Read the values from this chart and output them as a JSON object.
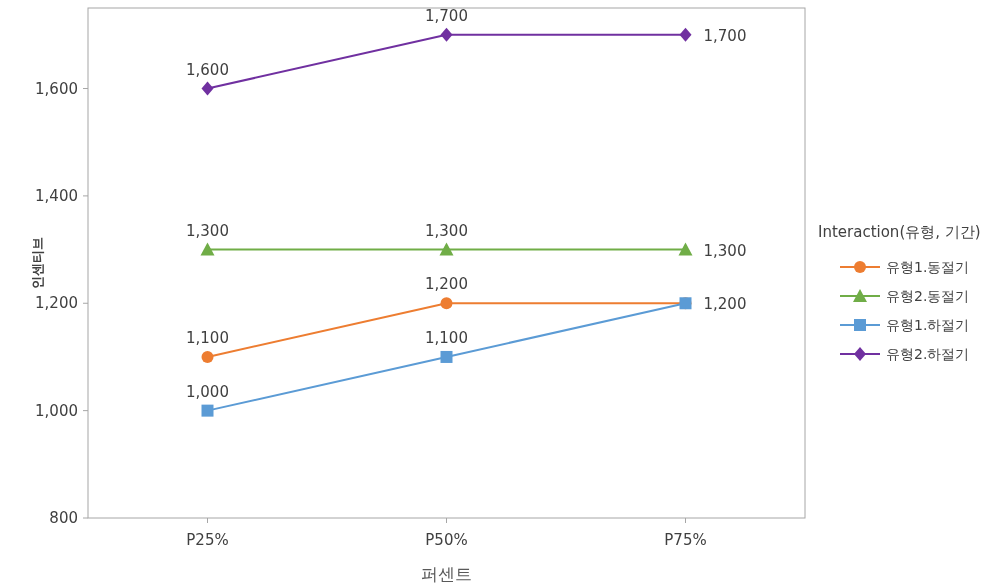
{
  "chart_data": {
    "type": "line",
    "xlabel": "퍼센트",
    "ylabel": "인센티브",
    "legend_title": "Interaction(유형, 기간)",
    "legend": "right",
    "grid": false,
    "line_style": "solid",
    "categories": [
      "P25%",
      "P50%",
      "P75%"
    ],
    "ylim": [
      800,
      1750
    ],
    "yticks": [
      {
        "value": 800,
        "label": "800"
      },
      {
        "value": 1000,
        "label": "1,000"
      },
      {
        "value": 1200,
        "label": "1,200"
      },
      {
        "value": 1400,
        "label": "1,400"
      },
      {
        "value": 1600,
        "label": "1,600"
      }
    ],
    "series": [
      {
        "name": "유형1.동절기",
        "color": "#ed7d31",
        "marker": "circle",
        "values": [
          1100,
          1200,
          1200
        ],
        "value_labels": [
          "1,100",
          "1,200",
          null
        ]
      },
      {
        "name": "유형2.동절기",
        "color": "#70ad47",
        "marker": "triangle",
        "values": [
          1300,
          1300,
          1300
        ],
        "value_labels": [
          "1,300",
          "1,300",
          "1,300"
        ]
      },
      {
        "name": "유형1.하절기",
        "color": "#5b9bd5",
        "marker": "square",
        "values": [
          1000,
          1100,
          1200
        ],
        "value_labels": [
          "1,000",
          "1,100",
          "1,200"
        ]
      },
      {
        "name": "유형2.하절기",
        "color": "#7030a0",
        "marker": "diamond",
        "values": [
          1600,
          1700,
          1700
        ],
        "value_labels": [
          "1,600",
          "1,700",
          "1,700"
        ]
      }
    ]
  }
}
